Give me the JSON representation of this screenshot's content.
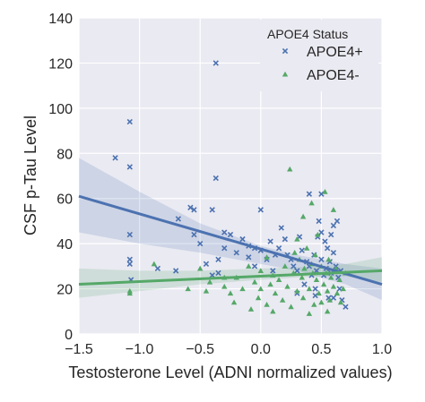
{
  "chart_data": {
    "type": "scatter",
    "title": "",
    "xlabel": "Testosterone Level (ADNI normalized values)",
    "ylabel": "CSF p-Tau Level",
    "xlim": [
      -1.5,
      1.0
    ],
    "ylim": [
      0,
      140
    ],
    "xticks": [
      "−1.5",
      "−1.0",
      "−0.5",
      "0.0",
      "0.5",
      "1.0"
    ],
    "yticks": [
      "0",
      "20",
      "40",
      "60",
      "80",
      "100",
      "120",
      "140"
    ],
    "grid": true,
    "background": "#eaeaf2",
    "legend": {
      "title": "APOE4 Status",
      "position": "top-right"
    },
    "series": [
      {
        "name": "APOE4+",
        "marker": "x",
        "color": "#4c72b0",
        "fit": {
          "x": [
            -1.5,
            1.0
          ],
          "y": [
            61,
            22
          ]
        },
        "ci": {
          "x": [
            -1.5,
            -1.0,
            -0.5,
            0.0,
            0.3,
            0.5,
            0.7,
            1.0
          ],
          "upper": [
            78,
            63,
            49,
            39,
            35,
            33,
            31,
            29
          ],
          "lower": [
            45,
            40,
            36,
            31,
            28,
            25,
            22,
            15
          ]
        },
        "points": [
          [
            -1.2,
            78
          ],
          [
            -1.08,
            94
          ],
          [
            -1.08,
            74
          ],
          [
            -1.08,
            44
          ],
          [
            -1.08,
            33
          ],
          [
            -1.08,
            31
          ],
          [
            -1.07,
            24
          ],
          [
            -0.85,
            29
          ],
          [
            -0.7,
            28
          ],
          [
            -0.68,
            51
          ],
          [
            -0.58,
            56
          ],
          [
            -0.55,
            55
          ],
          [
            -0.55,
            44
          ],
          [
            -0.5,
            40
          ],
          [
            -0.45,
            31
          ],
          [
            -0.4,
            26
          ],
          [
            -0.4,
            55
          ],
          [
            -0.37,
            69
          ],
          [
            -0.37,
            120
          ],
          [
            -0.35,
            33
          ],
          [
            -0.35,
            27
          ],
          [
            -0.3,
            45
          ],
          [
            -0.3,
            38
          ],
          [
            -0.25,
            44
          ],
          [
            -0.2,
            36
          ],
          [
            -0.15,
            42
          ],
          [
            -0.1,
            39
          ],
          [
            -0.1,
            34
          ],
          [
            -0.05,
            38
          ],
          [
            -0.05,
            30
          ],
          [
            0.0,
            55
          ],
          [
            0.0,
            37
          ],
          [
            0.05,
            33
          ],
          [
            0.08,
            41
          ],
          [
            0.1,
            28
          ],
          [
            0.12,
            35
          ],
          [
            0.15,
            38
          ],
          [
            0.17,
            47
          ],
          [
            0.2,
            42
          ],
          [
            0.22,
            35
          ],
          [
            0.25,
            33
          ],
          [
            0.27,
            30
          ],
          [
            0.3,
            28
          ],
          [
            0.32,
            43
          ],
          [
            0.34,
            37
          ],
          [
            0.36,
            22
          ],
          [
            0.38,
            32
          ],
          [
            0.4,
            30
          ],
          [
            0.4,
            62
          ],
          [
            0.42,
            26
          ],
          [
            0.44,
            35
          ],
          [
            0.45,
            20
          ],
          [
            0.46,
            28
          ],
          [
            0.47,
            43
          ],
          [
            0.48,
            50
          ],
          [
            0.5,
            33
          ],
          [
            0.5,
            45
          ],
          [
            0.5,
            62
          ],
          [
            0.52,
            26
          ],
          [
            0.53,
            41
          ],
          [
            0.54,
            29
          ],
          [
            0.55,
            38
          ],
          [
            0.56,
            16
          ],
          [
            0.57,
            32
          ],
          [
            0.58,
            44
          ],
          [
            0.58,
            27
          ],
          [
            0.6,
            36
          ],
          [
            0.6,
            48
          ],
          [
            0.62,
            30
          ],
          [
            0.63,
            50
          ],
          [
            0.64,
            25
          ],
          [
            0.65,
            20
          ],
          [
            0.66,
            28
          ],
          [
            0.67,
            15
          ],
          [
            0.7,
            12
          ],
          [
            0.3,
            18
          ],
          [
            0.45,
            17
          ],
          [
            0.6,
            16
          ]
        ]
      },
      {
        "name": "APOE4-",
        "marker": "triangle",
        "color": "#55a868",
        "fit": {
          "x": [
            -1.5,
            1.0
          ],
          "y": [
            22,
            28
          ]
        },
        "ci": {
          "x": [
            -1.5,
            -1.0,
            -0.5,
            0.0,
            0.3,
            0.5,
            0.7,
            1.0
          ],
          "upper": [
            29,
            28,
            28,
            29,
            29.5,
            30,
            31,
            34
          ],
          "lower": [
            16,
            19,
            22,
            24,
            25,
            25.5,
            25.5,
            23
          ]
        },
        "points": [
          [
            -1.08,
            19
          ],
          [
            -1.08,
            18
          ],
          [
            -0.88,
            31
          ],
          [
            -0.6,
            20
          ],
          [
            -0.5,
            29
          ],
          [
            -0.45,
            19
          ],
          [
            -0.42,
            23
          ],
          [
            -0.3,
            25
          ],
          [
            -0.3,
            21
          ],
          [
            -0.25,
            18
          ],
          [
            -0.22,
            14
          ],
          [
            -0.2,
            25
          ],
          [
            -0.15,
            20
          ],
          [
            -0.1,
            30
          ],
          [
            -0.08,
            11
          ],
          [
            -0.05,
            23
          ],
          [
            -0.02,
            16
          ],
          [
            0.0,
            28
          ],
          [
            0.0,
            20
          ],
          [
            0.05,
            13
          ],
          [
            0.05,
            34
          ],
          [
            0.08,
            22
          ],
          [
            0.1,
            26
          ],
          [
            0.12,
            18
          ],
          [
            0.15,
            24
          ],
          [
            0.18,
            15
          ],
          [
            0.2,
            30
          ],
          [
            0.22,
            21
          ],
          [
            0.24,
            73
          ],
          [
            0.25,
            12
          ],
          [
            0.27,
            27
          ],
          [
            0.28,
            36
          ],
          [
            0.3,
            19
          ],
          [
            0.3,
            42
          ],
          [
            0.32,
            33
          ],
          [
            0.34,
            25
          ],
          [
            0.35,
            16
          ],
          [
            0.36,
            29
          ],
          [
            0.38,
            38
          ],
          [
            0.4,
            20
          ],
          [
            0.4,
            9
          ],
          [
            0.42,
            31
          ],
          [
            0.43,
            27
          ],
          [
            0.44,
            13
          ],
          [
            0.45,
            35
          ],
          [
            0.46,
            24
          ],
          [
            0.47,
            44
          ],
          [
            0.48,
            18
          ],
          [
            0.5,
            30
          ],
          [
            0.5,
            14
          ],
          [
            0.52,
            22
          ],
          [
            0.53,
            63
          ],
          [
            0.54,
            27
          ],
          [
            0.55,
            19
          ],
          [
            0.56,
            33
          ],
          [
            0.57,
            15
          ],
          [
            0.58,
            25
          ],
          [
            0.6,
            21
          ],
          [
            0.62,
            29
          ],
          [
            0.63,
            18
          ],
          [
            0.65,
            24
          ],
          [
            0.66,
            14
          ],
          [
            0.68,
            20
          ],
          [
            0.7,
            27
          ],
          [
            0.1,
            10
          ],
          [
            0.35,
            52
          ],
          [
            0.42,
            58
          ],
          [
            0.55,
            10
          ],
          [
            0.6,
            55
          ]
        ]
      }
    ]
  }
}
